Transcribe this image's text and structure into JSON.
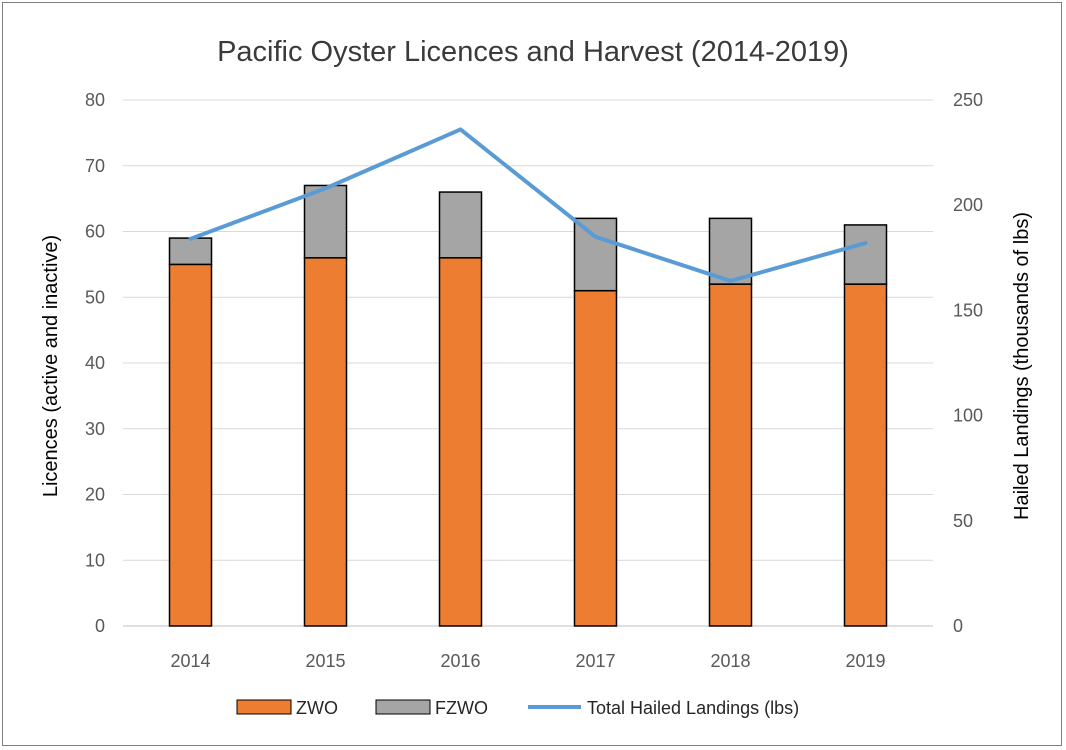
{
  "chart_data": {
    "type": "bar",
    "stacked": true,
    "title": "Pacific Oyster Licences and Harvest (2014-2019)",
    "categories": [
      "2014",
      "2015",
      "2016",
      "2017",
      "2018",
      "2019"
    ],
    "series": [
      {
        "name": "ZWO",
        "type": "bar",
        "axis": "left",
        "color": "#ed7d31",
        "values": [
          55,
          56,
          56,
          51,
          52,
          52
        ]
      },
      {
        "name": "FZWO",
        "type": "bar",
        "axis": "left",
        "color": "#a5a5a5",
        "values": [
          4,
          11,
          10,
          11,
          10,
          9
        ]
      },
      {
        "name": "Total Hailed Landings (lbs)",
        "type": "line",
        "axis": "right",
        "color": "#5b9bd5",
        "values": [
          184,
          208,
          236,
          185,
          164,
          182
        ]
      }
    ],
    "ylabel": "Licences (active and inactive)",
    "y2label": "Hailed Landings (thousands of lbs)",
    "ylim": [
      0,
      80
    ],
    "y2lim": [
      0,
      250
    ],
    "yticks": [
      "0",
      "10",
      "20",
      "30",
      "40",
      "50",
      "60",
      "70",
      "80"
    ],
    "y2ticks": [
      "0",
      "50",
      "100",
      "150",
      "200",
      "250"
    ],
    "grid": true,
    "legend_position": "bottom"
  }
}
